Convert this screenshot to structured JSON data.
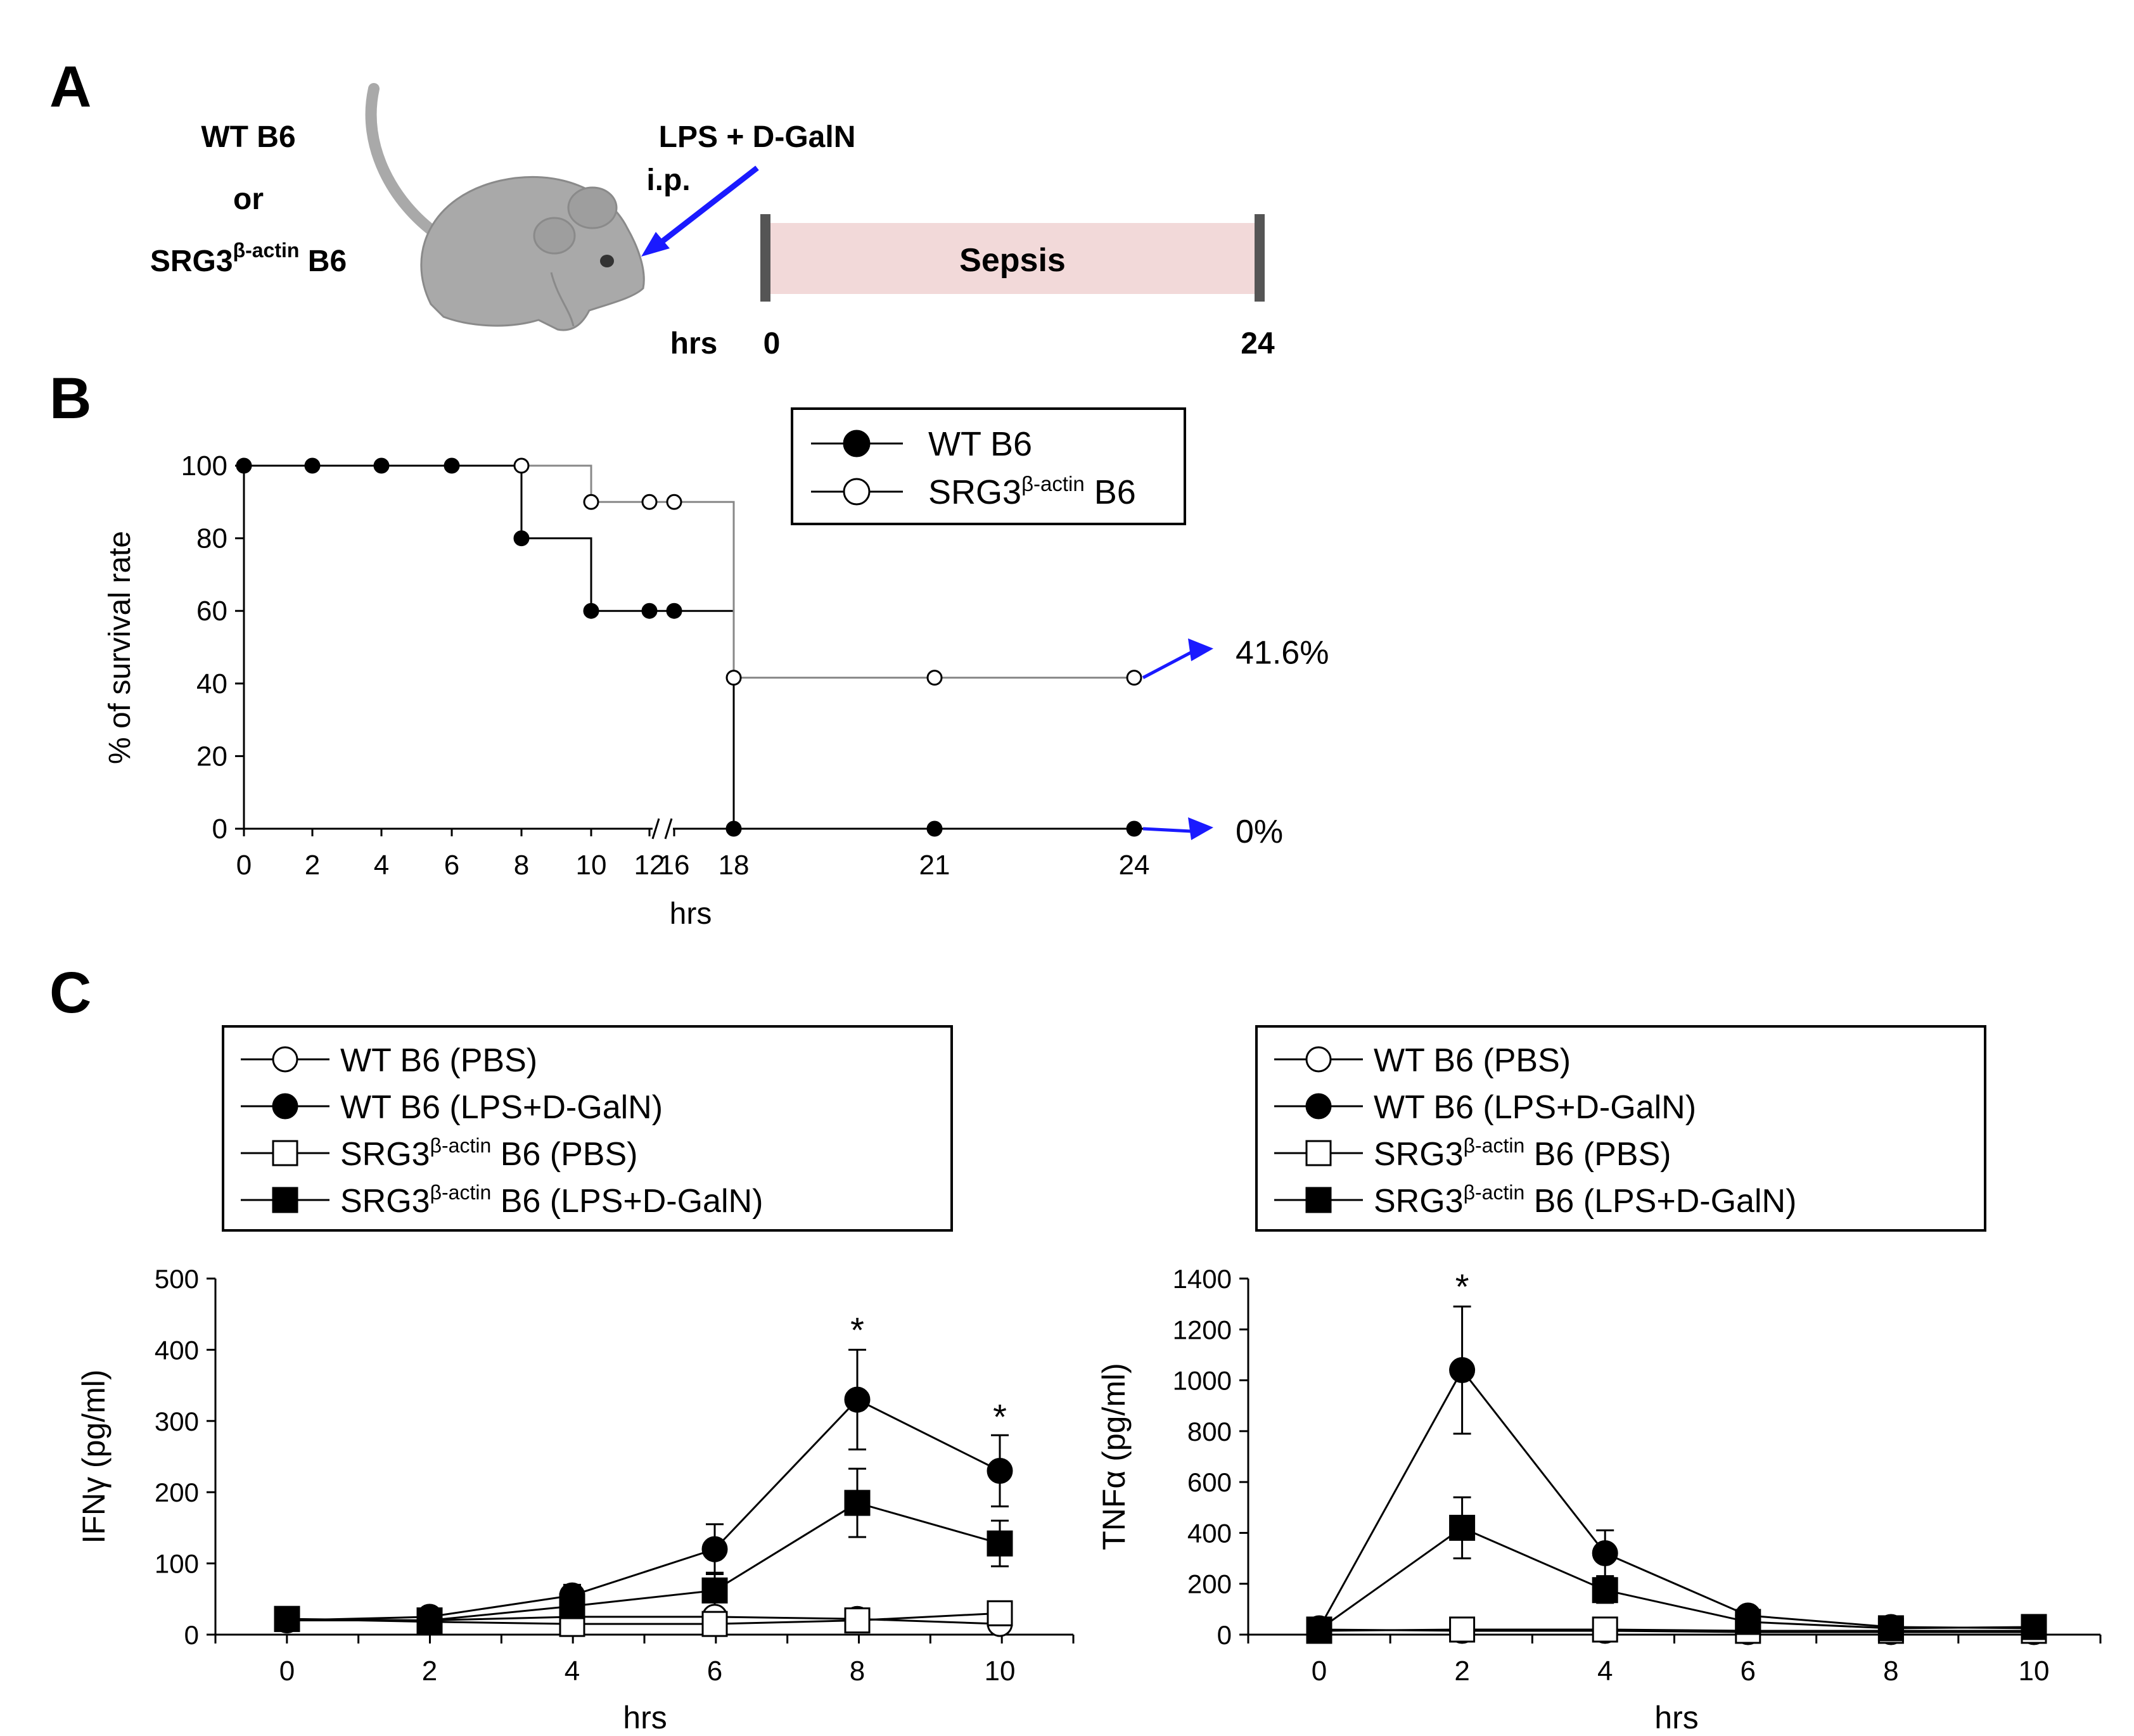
{
  "panels": {
    "a": "A",
    "b": "B",
    "c": "C"
  },
  "schematic": {
    "group1": "WT B6",
    "or_text": "or",
    "group2_base": "SRG3",
    "group2_sup": "β-actin",
    "group2_suffix": " B6",
    "injection": "LPS + D-GalN",
    "route": "i.p.",
    "phase": "Sepsis",
    "time_label": "hrs",
    "time_start": "0",
    "time_end": "24",
    "colors": {
      "arrow": "#1a1aff",
      "sepsis_bar": "#f2d9d9",
      "mouse": "#a9a9a9"
    }
  },
  "chart_data": [
    {
      "id": "survival",
      "type": "line",
      "title": "",
      "xlabel": "hrs",
      "ylabel": "% of survival rate",
      "ylim": [
        0,
        100
      ],
      "yticks": [
        "0",
        "20",
        "40",
        "60",
        "80",
        "100"
      ],
      "xticks": [
        "0",
        "2",
        "4",
        "6",
        "8",
        "10",
        "12",
        "16",
        "18",
        "21",
        "24"
      ],
      "axis_break": "between 12 and 16",
      "legend": {
        "position": "top-right",
        "entries": [
          {
            "label_base": "WT B6",
            "label_sup": "",
            "label_suffix": "",
            "marker": "filled-circle"
          },
          {
            "label_base": "SRG3",
            "label_sup": "β-actin",
            "label_suffix": " B6",
            "marker": "open-circle"
          }
        ]
      },
      "series": [
        {
          "name": "WT B6",
          "step": true,
          "x": [
            0,
            2,
            4,
            6,
            8,
            10,
            12,
            16,
            18,
            21,
            24
          ],
          "values": [
            100,
            100,
            100,
            100,
            80,
            60,
            60,
            60,
            0,
            0,
            0
          ]
        },
        {
          "name": "SRG3β-actin B6",
          "step": true,
          "x": [
            8,
            10,
            12,
            16,
            18,
            21,
            24
          ],
          "values": [
            100,
            90,
            90,
            90,
            41.6,
            41.6,
            41.6
          ]
        }
      ],
      "annotations": [
        {
          "text": "41.6%",
          "series": "SRG3β-actin B6"
        },
        {
          "text": "0%",
          "series": "WT B6"
        }
      ],
      "arrow_color": "#1a1aff"
    },
    {
      "id": "ifng",
      "type": "line",
      "title": "",
      "xlabel": "hrs",
      "ylabel": "IFNγ (pg/ml)",
      "ylim": [
        0,
        500
      ],
      "yticks": [
        "0",
        "100",
        "200",
        "300",
        "400",
        "500"
      ],
      "xticks": [
        "0",
        "2",
        "4",
        "6",
        "8",
        "10"
      ],
      "legend": {
        "position": "top",
        "entries": [
          {
            "label_base": "WT B6 (PBS)",
            "label_sup": "",
            "label_suffix": "",
            "marker": "open-circle"
          },
          {
            "label_base": "WT B6 (LPS+D-GalN)",
            "label_sup": "",
            "label_suffix": "",
            "marker": "filled-circle"
          },
          {
            "label_base": "SRG3",
            "label_sup": "β-actin",
            "label_suffix": " B6 (PBS)",
            "marker": "open-square"
          },
          {
            "label_base": "SRG3",
            "label_sup": "β-actin",
            "label_suffix": " B6 (LPS+D-GalN)",
            "marker": "filled-square"
          }
        ]
      },
      "series": [
        {
          "name": "WT B6 (PBS)",
          "marker": "open-circle",
          "x": [
            0,
            2,
            4,
            6,
            8,
            10
          ],
          "values": [
            20,
            20,
            25,
            25,
            22,
            15
          ],
          "err": [
            0,
            0,
            0,
            0,
            0,
            0
          ]
        },
        {
          "name": "WT B6 (LPS+D-GalN)",
          "marker": "filled-circle",
          "x": [
            0,
            2,
            4,
            6,
            8,
            10
          ],
          "values": [
            20,
            25,
            55,
            120,
            330,
            230
          ],
          "err": [
            0,
            0,
            15,
            35,
            70,
            50
          ]
        },
        {
          "name": "SRG3β-actin B6 (PBS)",
          "marker": "open-square",
          "x": [
            0,
            2,
            4,
            6,
            8,
            10
          ],
          "values": [
            22,
            18,
            15,
            15,
            20,
            30
          ],
          "err": [
            0,
            0,
            0,
            0,
            0,
            0
          ]
        },
        {
          "name": "SRG3β-actin B6 (LPS+D-GalN)",
          "marker": "filled-square",
          "x": [
            0,
            2,
            4,
            6,
            8,
            10
          ],
          "values": [
            22,
            20,
            40,
            62,
            185,
            128
          ],
          "err": [
            0,
            0,
            10,
            25,
            48,
            32
          ]
        }
      ],
      "significance": [
        {
          "x": 8,
          "y": 400,
          "text": "*"
        },
        {
          "x": 10,
          "y": 278,
          "text": "*"
        }
      ]
    },
    {
      "id": "tnfa",
      "type": "line",
      "title": "",
      "xlabel": "hrs",
      "ylabel": "TNFα (pg/ml)",
      "ylim": [
        0,
        1400
      ],
      "yticks": [
        "0",
        "200",
        "400",
        "600",
        "800",
        "1000",
        "1200",
        "1400"
      ],
      "xticks": [
        "0",
        "2",
        "4",
        "6",
        "8",
        "10"
      ],
      "legend": {
        "position": "top",
        "entries": [
          {
            "label_base": "WT B6 (PBS)",
            "label_sup": "",
            "label_suffix": "",
            "marker": "open-circle"
          },
          {
            "label_base": "WT B6 (LPS+D-GalN)",
            "label_sup": "",
            "label_suffix": "",
            "marker": "filled-circle"
          },
          {
            "label_base": "SRG3",
            "label_sup": "β-actin",
            "label_suffix": " B6 (PBS)",
            "marker": "open-square"
          },
          {
            "label_base": "SRG3",
            "label_sup": "β-actin",
            "label_suffix": " B6 (LPS+D-GalN)",
            "marker": "filled-square"
          }
        ]
      },
      "series": [
        {
          "name": "WT B6 (PBS)",
          "marker": "open-circle",
          "x": [
            0,
            2,
            4,
            6,
            8,
            10
          ],
          "values": [
            20,
            15,
            15,
            10,
            10,
            10
          ],
          "err": [
            0,
            0,
            0,
            0,
            0,
            0
          ]
        },
        {
          "name": "WT B6 (LPS+D-GalN)",
          "marker": "filled-circle",
          "x": [
            0,
            2,
            4,
            6,
            8,
            10
          ],
          "values": [
            25,
            1040,
            320,
            75,
            30,
            25
          ],
          "err": [
            0,
            250,
            90,
            15,
            5,
            5
          ]
        },
        {
          "name": "SRG3β-actin B6 (PBS)",
          "marker": "open-square",
          "x": [
            0,
            2,
            4,
            6,
            8,
            10
          ],
          "values": [
            15,
            20,
            20,
            15,
            15,
            15
          ],
          "err": [
            0,
            0,
            0,
            0,
            0,
            0
          ]
        },
        {
          "name": "SRG3β-actin B6 (LPS+D-GalN)",
          "marker": "filled-square",
          "x": [
            0,
            2,
            4,
            6,
            8,
            10
          ],
          "values": [
            20,
            420,
            175,
            50,
            25,
            30
          ],
          "err": [
            0,
            120,
            50,
            10,
            5,
            5
          ]
        }
      ],
      "significance": [
        {
          "x": 2,
          "y": 1290,
          "text": "*"
        }
      ]
    }
  ]
}
